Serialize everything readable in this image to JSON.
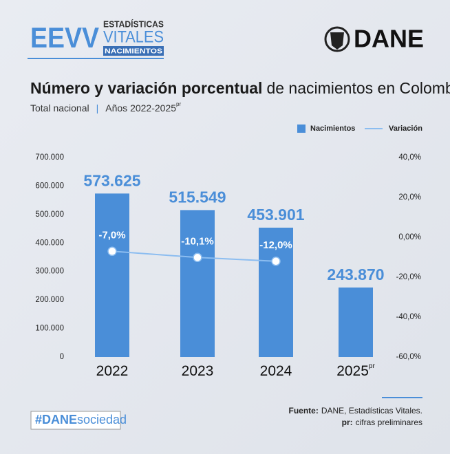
{
  "header": {
    "logo": "EEVV",
    "logo_line1": "ESTADÍSTICAS",
    "logo_line2": "VITALES",
    "logo_line3": "NACIMIENTOS",
    "brand": "DANE"
  },
  "chart_data": {
    "type": "bar",
    "title_parts": [
      "Número y variación porcentual",
      "de nacimientos en Colombia"
    ],
    "subtitle_parts": [
      "Total nacional",
      "Años 2022-2025",
      "pr"
    ],
    "categories": [
      "2022",
      "2023",
      "2024",
      "2025"
    ],
    "category_superscripts": [
      null,
      null,
      null,
      "pr"
    ],
    "series": [
      {
        "name": "Nacimientos",
        "type": "bar",
        "color": "#4a8ed8",
        "values": [
          573625,
          515549,
          453901,
          243870
        ],
        "value_labels": [
          "573.625",
          "515.549",
          "453.901",
          "243.870"
        ]
      },
      {
        "name": "Variación",
        "type": "line",
        "axis": "y2",
        "color": "#8cbdf0",
        "values": [
          -7.0,
          -10.1,
          -12.0,
          null
        ],
        "value_labels": [
          "-7,0%",
          "-10,1%",
          "-12,0%",
          null
        ]
      }
    ],
    "ylim": [
      0,
      700000
    ],
    "yticks": [
      0,
      {
        "value": 100000,
        "label": "100.000"
      },
      {
        "value": 200000,
        "label": "200.000"
      },
      {
        "value": 300000,
        "label": "300.000"
      },
      {
        "value": 400000,
        "label": "400.000"
      },
      {
        "value": 500000,
        "label": "500.000"
      },
      {
        "value": 600000,
        "label": "600.000"
      },
      {
        "value": 700000,
        "label": "700.000"
      }
    ],
    "y2lim": [
      -60,
      40
    ],
    "y2ticks": [
      {
        "value": -60,
        "label": "-60,0%"
      },
      {
        "value": -40,
        "label": "-40,0%"
      },
      {
        "value": -20,
        "label": "-20,0%"
      },
      {
        "value": 0,
        "label": "0,00%"
      },
      {
        "value": 20,
        "label": "20,0%"
      },
      {
        "value": 40,
        "label": "40,0%"
      }
    ],
    "legend": "top-right"
  },
  "footer": {
    "hashtag_bold": "#DANE",
    "hashtag_rest": "sociedad",
    "source_label": "Fuente:",
    "source": "DANE, Estadísticas Vitales.",
    "note_label": "pr:",
    "note": "cifras preliminares"
  }
}
